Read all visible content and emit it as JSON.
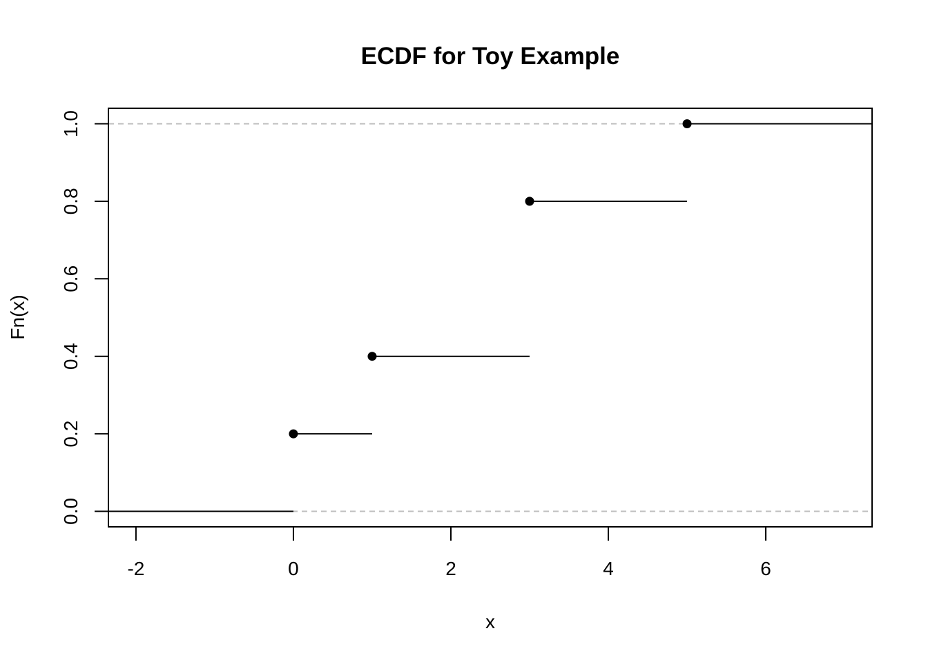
{
  "chart_data": {
    "type": "line",
    "subtype": "ecdf-step",
    "title": "ECDF for Toy Example",
    "xlabel": "x",
    "ylabel": "Fn(x)",
    "xlim": [
      -2.35,
      7.35
    ],
    "ylim": [
      -0.04,
      1.04
    ],
    "xticks": [
      -2,
      0,
      2,
      4,
      6
    ],
    "xtick_labels": [
      "-2",
      "0",
      "2",
      "4",
      "6"
    ],
    "yticks": [
      0,
      0.2,
      0.4,
      0.6,
      0.8,
      1.0
    ],
    "ytick_labels": [
      "0.0",
      "0.2",
      "0.4",
      "0.6",
      "0.8",
      "1.0"
    ],
    "grid": false,
    "reference_lines": [
      0,
      1
    ],
    "reference_line_color": "#bebebe",
    "steps": [
      {
        "x_start": -2.35,
        "x_end": 0,
        "y": 0.0,
        "point": false
      },
      {
        "x_start": 0,
        "x_end": 1,
        "y": 0.2,
        "point": true
      },
      {
        "x_start": 1,
        "x_end": 3,
        "y": 0.4,
        "point": true
      },
      {
        "x_start": 3,
        "x_end": 5,
        "y": 0.8,
        "point": true
      },
      {
        "x_start": 5,
        "x_end": 7.35,
        "y": 1.0,
        "point": true
      }
    ],
    "color": "#000000"
  }
}
